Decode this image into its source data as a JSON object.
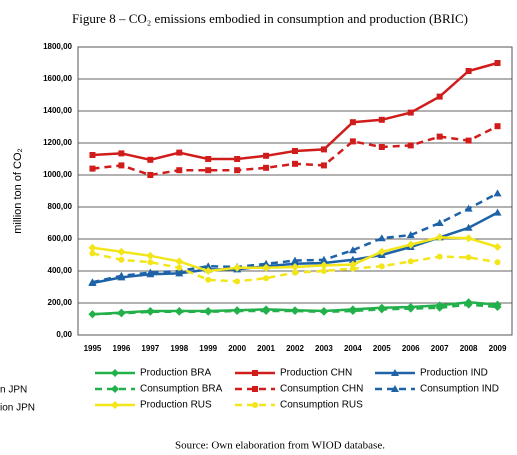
{
  "chart_data": {
    "type": "line",
    "title": "Figure 8 – CO₂ emissions embodied in consumption and production (BRIC)",
    "ylabel": "million ton of CO₂",
    "source": "Source: Own elaboration from WIOD database.",
    "cropped_labels": [
      "n JPN",
      "ion JPN"
    ],
    "categories": [
      "1995",
      "1996",
      "1997",
      "1998",
      "1999",
      "2000",
      "2001",
      "2002",
      "2003",
      "2004",
      "2005",
      "2006",
      "2007",
      "2008",
      "2009"
    ],
    "ylim": [
      0,
      1800
    ],
    "yticks": [
      {
        "value": 0,
        "label": "0,00"
      },
      {
        "value": 200,
        "label": "200,00"
      },
      {
        "value": 400,
        "label": "400,00"
      },
      {
        "value": 600,
        "label": "600,00"
      },
      {
        "value": 800,
        "label": "800,00"
      },
      {
        "value": 1000,
        "label": "1000,00"
      },
      {
        "value": 1200,
        "label": "1200,00"
      },
      {
        "value": 1400,
        "label": "1400,00"
      },
      {
        "value": 1600,
        "label": "1600,00"
      },
      {
        "value": 1800,
        "label": "1800,00"
      }
    ],
    "grid": true,
    "legend": "bottom",
    "series": [
      {
        "name": "Production BRA",
        "color": "#22b04a",
        "marker": "diamond",
        "dash": false,
        "values": [
          130,
          140,
          150,
          150,
          150,
          155,
          160,
          155,
          150,
          160,
          170,
          175,
          185,
          205,
          190
        ]
      },
      {
        "name": "Production CHN",
        "color": "#d11c1c",
        "marker": "square",
        "dash": false,
        "values": [
          1125,
          1135,
          1095,
          1140,
          1100,
          1100,
          1120,
          1150,
          1160,
          1330,
          1345,
          1390,
          1490,
          1650,
          1700
        ]
      },
      {
        "name": "Production IND",
        "color": "#1e63a8",
        "marker": "triangle",
        "dash": false,
        "values": [
          325,
          360,
          380,
          385,
          410,
          410,
          430,
          445,
          450,
          470,
          500,
          550,
          610,
          670,
          765
        ]
      },
      {
        "name": "Consumption BRA",
        "color": "#22b04a",
        "marker": "diamond",
        "dash": true,
        "values": [
          130,
          135,
          145,
          145,
          145,
          150,
          150,
          150,
          145,
          150,
          160,
          165,
          170,
          190,
          175
        ]
      },
      {
        "name": "Consumption CHN",
        "color": "#d11c1c",
        "marker": "square",
        "dash": true,
        "values": [
          1040,
          1060,
          1000,
          1030,
          1030,
          1030,
          1045,
          1070,
          1060,
          1210,
          1175,
          1185,
          1240,
          1215,
          1305
        ]
      },
      {
        "name": "Consumption IND",
        "color": "#1e63a8",
        "marker": "triangle",
        "dash": true,
        "values": [
          330,
          370,
          390,
          400,
          430,
          425,
          445,
          465,
          470,
          530,
          605,
          625,
          700,
          790,
          885
        ]
      },
      {
        "name": "Production RUS",
        "color": "#f2e61a",
        "marker": "diamond",
        "dash": false,
        "values": [
          545,
          520,
          495,
          460,
          400,
          420,
          420,
          425,
          435,
          440,
          520,
          565,
          610,
          605,
          550
        ]
      },
      {
        "name": "Consumption RUS",
        "color": "#f2e61a",
        "marker": "circle",
        "dash": true,
        "values": [
          510,
          470,
          455,
          420,
          345,
          335,
          355,
          390,
          400,
          415,
          430,
          460,
          490,
          485,
          455
        ]
      }
    ]
  }
}
